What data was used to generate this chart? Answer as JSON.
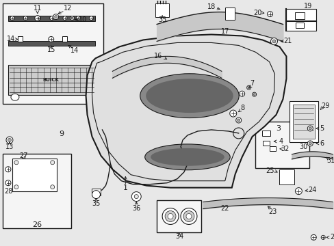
{
  "bg": "#e8e8e8",
  "box_bg": "#f5f5f5",
  "lc": "#1a1a1a",
  "white": "#ffffff",
  "gray": "#aaaaaa",
  "darkgray": "#555555"
}
